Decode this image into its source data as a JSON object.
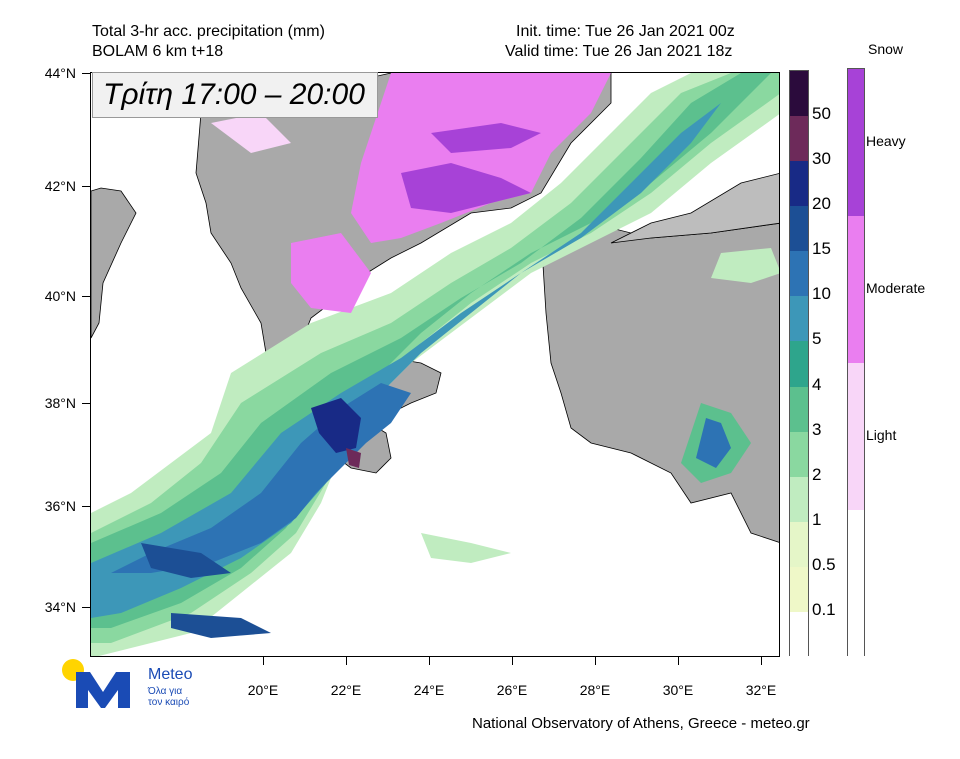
{
  "header": {
    "title_line1": "Total 3-hr acc. precipitation (mm)",
    "title_line2": "BOLAM 6 km t+18",
    "init_time": "Init. time: Tue 26 Jan 2021 00z",
    "valid_time": "Valid time: Tue 26 Jan 2021 18z"
  },
  "overlay_label": "Τρίτη 17:00 – 20:00",
  "map": {
    "lat_ticks": [
      "44°N",
      "42°N",
      "40°N",
      "38°N",
      "36°N",
      "34°N"
    ],
    "lon_ticks": [
      "20°E",
      "22°E",
      "24°E",
      "26°E",
      "28°E",
      "30°E",
      "32°E"
    ]
  },
  "precip_colorbar": {
    "labels": [
      "50",
      "30",
      "20",
      "15",
      "10",
      "5",
      "4",
      "3",
      "2",
      "1",
      "0.5",
      "0.1"
    ],
    "colors": [
      "#2b0b3c",
      "#6d2a5a",
      "#182a86",
      "#1c4f95",
      "#2d73b4",
      "#3d97b8",
      "#2ea58c",
      "#5cc08e",
      "#8ad8a0",
      "#c0ecc0",
      "#e5f6c8",
      "#eff8c8",
      "#ffffff"
    ]
  },
  "snow_colorbar": {
    "title": "Snow",
    "labels": [
      "Heavy",
      "Moderate",
      "Light"
    ],
    "colors": [
      "#a742d7",
      "#ea7ef0",
      "#f8d6f8",
      "#ffffff"
    ]
  },
  "credit": "National Observatory of Athens, Greece - meteo.gr",
  "logo": {
    "name": "Meteo",
    "tagline_1": "Όλα για",
    "tagline_2": "τον καιρό"
  }
}
